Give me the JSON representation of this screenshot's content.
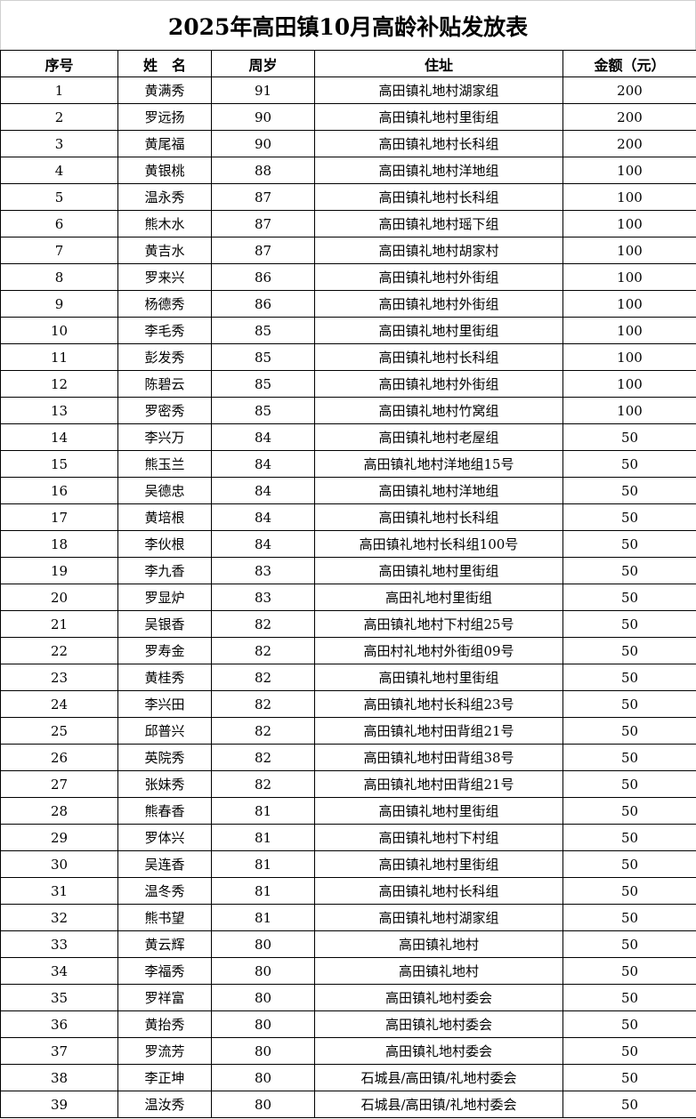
{
  "title": "2025年高田镇10月高龄补贴发放表",
  "headers": [
    "序号",
    "姓　名",
    "周岁",
    "住址",
    "金额（元）"
  ],
  "rows": [
    [
      "1",
      "黄满秀",
      "91",
      "高田镇礼地村湖家组",
      "200"
    ],
    [
      "2",
      "罗远扬",
      "90",
      "高田镇礼地村里街组",
      "200"
    ],
    [
      "3",
      "黄尾福",
      "90",
      "高田镇礼地村长科组",
      "200"
    ],
    [
      "4",
      "黄银桃",
      "88",
      "高田镇礼地村洋地组",
      "100"
    ],
    [
      "5",
      "温永秀",
      "87",
      "高田镇礼地村长科组",
      "100"
    ],
    [
      "6",
      "熊木水",
      "87",
      "高田镇礼地村瑶下组",
      "100"
    ],
    [
      "7",
      "黄吉水",
      "87",
      "高田镇礼地村胡家村",
      "100"
    ],
    [
      "8",
      "罗来兴",
      "86",
      "高田镇礼地村外街组",
      "100"
    ],
    [
      "9",
      "杨德秀",
      "86",
      "高田镇礼地村外街组",
      "100"
    ],
    [
      "10",
      "李毛秀",
      "85",
      "高田镇礼地村里街组",
      "100"
    ],
    [
      "11",
      "彭发秀",
      "85",
      "高田镇礼地村长科组",
      "100"
    ],
    [
      "12",
      "陈碧云",
      "85",
      "高田镇礼地村外街组",
      "100"
    ],
    [
      "13",
      "罗密秀",
      "85",
      "高田镇礼地村竹窝组",
      "100"
    ],
    [
      "14",
      "李兴万",
      "84",
      "高田镇礼地村老屋组",
      "50"
    ],
    [
      "15",
      "熊玉兰",
      "84",
      "高田镇礼地村洋地组15号",
      "50"
    ],
    [
      "16",
      "吴德忠",
      "84",
      "高田镇礼地村洋地组",
      "50"
    ],
    [
      "17",
      "黄培根",
      "84",
      "高田镇礼地村长科组",
      "50"
    ],
    [
      "18",
      "李伙根",
      "84",
      "高田镇礼地村长科组100号",
      "50"
    ],
    [
      "19",
      "李九香",
      "83",
      "高田镇礼地村里街组",
      "50"
    ],
    [
      "20",
      "罗显炉",
      "83",
      "高田礼地村里街组",
      "50"
    ],
    [
      "21",
      "吴银香",
      "82",
      "高田镇礼地村下村组25号",
      "50"
    ],
    [
      "22",
      "罗寿金",
      "82",
      "高田村礼地村外街组09号",
      "50"
    ],
    [
      "23",
      "黄桂秀",
      "82",
      "高田镇礼地村里街组",
      "50"
    ],
    [
      "24",
      "李兴田",
      "82",
      "高田镇礼地村长科组23号",
      "50"
    ],
    [
      "25",
      "邱普兴",
      "82",
      "高田镇礼地村田背组21号",
      "50"
    ],
    [
      "26",
      "英院秀",
      "82",
      "高田镇礼地村田背组38号",
      "50"
    ],
    [
      "27",
      "张妹秀",
      "82",
      "高田镇礼地村田背组21号",
      "50"
    ],
    [
      "28",
      "熊春香",
      "81",
      "高田镇礼地村里街组",
      "50"
    ],
    [
      "29",
      "罗体兴",
      "81",
      "高田镇礼地村下村组",
      "50"
    ],
    [
      "30",
      "吴连香",
      "81",
      "高田镇礼地村里街组",
      "50"
    ],
    [
      "31",
      "温冬秀",
      "81",
      "高田镇礼地村长科组",
      "50"
    ],
    [
      "32",
      "熊书望",
      "81",
      "高田镇礼地村湖家组",
      "50"
    ],
    [
      "33",
      "黄云辉",
      "80",
      "高田镇礼地村",
      "50"
    ],
    [
      "34",
      "李福秀",
      "80",
      "高田镇礼地村",
      "50"
    ],
    [
      "35",
      "罗祥富",
      "80",
      "高田镇礼地村委会",
      "50"
    ],
    [
      "36",
      "黄抬秀",
      "80",
      "高田镇礼地村委会",
      "50"
    ],
    [
      "37",
      "罗流芳",
      "80",
      "高田镇礼地村委会",
      "50"
    ],
    [
      "38",
      "李正坤",
      "80",
      "石城县/高田镇/礼地村委会",
      "50"
    ],
    [
      "39",
      "温汝秀",
      "80",
      "石城县/高田镇/礼地村委会",
      "50"
    ]
  ]
}
